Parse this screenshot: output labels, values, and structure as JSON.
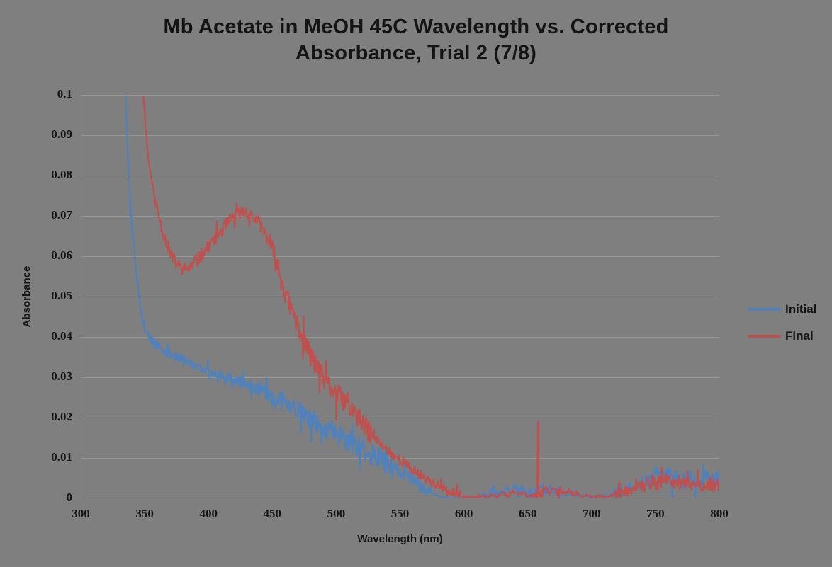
{
  "chart_data": {
    "type": "line",
    "title": "Mb Acetate in MeOH 45C Wavelength vs. Corrected Absorbance, Trial 2 (7/8)",
    "title_lines": [
      "Mb Acetate in MeOH 45C Wavelength vs. Corrected",
      "Absorbance, Trial 2 (7/8)"
    ],
    "xlabel": "Wavelength (nm)",
    "ylabel": "Absorbance",
    "xlim": [
      300,
      800
    ],
    "ylim": [
      0,
      0.1
    ],
    "xticks": [
      300,
      350,
      400,
      450,
      500,
      550,
      600,
      650,
      700,
      750,
      800
    ],
    "yticks": [
      0,
      0.01,
      0.02,
      0.03,
      0.04,
      0.05,
      0.06,
      0.07,
      0.08,
      0.09,
      0.1
    ],
    "ytick_labels": [
      "0",
      "0.01",
      "0.02",
      "0.03",
      "0.04",
      "0.05",
      "0.06",
      "0.07",
      "0.08",
      "0.09",
      "0.1"
    ],
    "grid": "horizontal",
    "background_color": "#7f7f7f",
    "gridline_color": "#969696",
    "axis_line_color": "#9c9c9c",
    "step_nm": 0.5,
    "legend": {
      "position": "right",
      "entries": [
        {
          "label": "Initial",
          "color": "#4F81BD"
        },
        {
          "label": "Final",
          "color": "#C0504D"
        }
      ]
    },
    "series": [
      {
        "name": "Initial",
        "color": "#4F81BD",
        "noise_seed": 3,
        "anchors": [
          [
            335,
            0.1
          ],
          [
            336.5,
            0.088
          ],
          [
            338,
            0.078
          ],
          [
            339.5,
            0.07
          ],
          [
            341,
            0.064
          ],
          [
            343,
            0.058
          ],
          [
            345,
            0.052
          ],
          [
            347,
            0.047
          ],
          [
            349,
            0.0435
          ],
          [
            351,
            0.0415
          ],
          [
            353.5,
            0.04
          ],
          [
            357,
            0.0385
          ],
          [
            361,
            0.0375
          ],
          [
            366,
            0.0365
          ],
          [
            372,
            0.0355
          ],
          [
            378,
            0.0345
          ],
          [
            385,
            0.0335
          ],
          [
            392,
            0.0325
          ],
          [
            400,
            0.0315
          ],
          [
            408,
            0.0305
          ],
          [
            416,
            0.03
          ],
          [
            424,
            0.029
          ],
          [
            432,
            0.028
          ],
          [
            440,
            0.027
          ],
          [
            448,
            0.0258
          ],
          [
            456,
            0.0244
          ],
          [
            464,
            0.023
          ],
          [
            472,
            0.0214
          ],
          [
            480,
            0.0198
          ],
          [
            488,
            0.0184
          ],
          [
            496,
            0.0169
          ],
          [
            504,
            0.0154
          ],
          [
            512,
            0.0139
          ],
          [
            520,
            0.0124
          ],
          [
            528,
            0.0109
          ],
          [
            536,
            0.0094
          ],
          [
            544,
            0.0079
          ],
          [
            550,
            0.0067
          ],
          [
            556,
            0.0054
          ],
          [
            562,
            0.0041
          ],
          [
            568,
            0.0028
          ],
          [
            573,
            0.0018
          ],
          [
            578,
            0.0008
          ],
          [
            583,
            0.0003
          ],
          [
            590,
            0.0001
          ],
          [
            598,
            0
          ],
          [
            612,
            0
          ],
          [
            616,
            0.0012
          ],
          [
            619,
            0.0004
          ],
          [
            622,
            0.0018
          ],
          [
            625,
            0.0008
          ],
          [
            628,
            0.0022
          ],
          [
            631,
            0.001
          ],
          [
            634,
            0.0028
          ],
          [
            637,
            0.0012
          ],
          [
            640,
            0.0032
          ],
          [
            643,
            0.0014
          ],
          [
            646,
            0.0024
          ],
          [
            649,
            0.001
          ],
          [
            652,
            0.002
          ],
          [
            655,
            0.0008
          ],
          [
            658,
            0.0022
          ],
          [
            661,
            0.0032
          ],
          [
            664,
            0.0014
          ],
          [
            667,
            0.0028
          ],
          [
            670,
            0.0014
          ],
          [
            673,
            0.0024
          ],
          [
            676,
            0.001
          ],
          [
            679,
            0.0018
          ],
          [
            682,
            0.0008
          ],
          [
            686,
            0.0014
          ],
          [
            690,
            0.0005
          ],
          [
            695,
            0.0008
          ],
          [
            700,
            0.0003
          ],
          [
            706,
            0.0008
          ],
          [
            712,
            0.0004
          ],
          [
            716,
            0.0012
          ],
          [
            720,
            0.0018
          ],
          [
            725,
            0.0022
          ],
          [
            730,
            0.0028
          ],
          [
            736,
            0.0032
          ],
          [
            742,
            0.0038
          ],
          [
            748,
            0.005
          ],
          [
            752,
            0.0062
          ],
          [
            756,
            0.0048
          ],
          [
            760,
            0.0058
          ],
          [
            764,
            0.0044
          ],
          [
            768,
            0.0054
          ],
          [
            772,
            0.004
          ],
          [
            776,
            0.0048
          ],
          [
            780,
            0.0054
          ],
          [
            784,
            0.0044
          ],
          [
            788,
            0.005
          ],
          [
            792,
            0.0056
          ],
          [
            796,
            0.0044
          ],
          [
            800,
            0.0052
          ]
        ],
        "noise_zones": [
          [
            335,
            344,
            0.0006
          ],
          [
            344,
            440,
            0.0013
          ],
          [
            440,
            470,
            0.002
          ],
          [
            470,
            545,
            0.0028
          ],
          [
            545,
            576,
            0.0015
          ],
          [
            576,
            614,
            0.0001
          ],
          [
            614,
            688,
            0.0008
          ],
          [
            688,
            716,
            0.0003
          ],
          [
            716,
            745,
            0.0012
          ],
          [
            745,
            800,
            0.0022
          ]
        ],
        "spikes": []
      },
      {
        "name": "Final",
        "color": "#C0504D",
        "noise_seed": 11,
        "anchors": [
          [
            349,
            0.1
          ],
          [
            351,
            0.091
          ],
          [
            353,
            0.084
          ],
          [
            355.5,
            0.079
          ],
          [
            358,
            0.074
          ],
          [
            361,
            0.07
          ],
          [
            364,
            0.0665
          ],
          [
            367,
            0.0635
          ],
          [
            370,
            0.061
          ],
          [
            373,
            0.059
          ],
          [
            376,
            0.0578
          ],
          [
            379,
            0.057
          ],
          [
            382,
            0.0568
          ],
          [
            385,
            0.0572
          ],
          [
            388,
            0.058
          ],
          [
            391,
            0.059
          ],
          [
            395,
            0.0605
          ],
          [
            399,
            0.062
          ],
          [
            403,
            0.0638
          ],
          [
            407,
            0.0652
          ],
          [
            411,
            0.0668
          ],
          [
            415,
            0.0682
          ],
          [
            419,
            0.0695
          ],
          [
            423,
            0.0705
          ],
          [
            427,
            0.071
          ],
          [
            431,
            0.0706
          ],
          [
            435,
            0.0698
          ],
          [
            439,
            0.0685
          ],
          [
            443,
            0.0665
          ],
          [
            447,
            0.064
          ],
          [
            451,
            0.0605
          ],
          [
            455,
            0.0565
          ],
          [
            459,
            0.052
          ],
          [
            463,
            0.048
          ],
          [
            467,
            0.0452
          ],
          [
            471,
            0.042
          ],
          [
            475,
            0.039
          ],
          [
            479,
            0.0362
          ],
          [
            483,
            0.0335
          ],
          [
            487,
            0.0312
          ],
          [
            491,
            0.0292
          ],
          [
            496,
            0.0274
          ],
          [
            501,
            0.0258
          ],
          [
            506,
            0.0242
          ],
          [
            511,
            0.0224
          ],
          [
            516,
            0.0204
          ],
          [
            521,
            0.0184
          ],
          [
            526,
            0.0164
          ],
          [
            531,
            0.0147
          ],
          [
            536,
            0.0131
          ],
          [
            541,
            0.0117
          ],
          [
            546,
            0.0104
          ],
          [
            551,
            0.0092
          ],
          [
            556,
            0.008
          ],
          [
            561,
            0.0068
          ],
          [
            566,
            0.0058
          ],
          [
            571,
            0.0048
          ],
          [
            576,
            0.0038
          ],
          [
            581,
            0.0028
          ],
          [
            586,
            0.002
          ],
          [
            591,
            0.0013
          ],
          [
            595,
            0.0008
          ],
          [
            599,
            0.0004
          ],
          [
            604,
            0.0001
          ],
          [
            612,
            0
          ],
          [
            615,
            0.0008
          ],
          [
            618,
            0.0002
          ],
          [
            622,
            0.0012
          ],
          [
            626,
            0.0004
          ],
          [
            630,
            0.0015
          ],
          [
            634,
            0.0006
          ],
          [
            638,
            0.0018
          ],
          [
            642,
            0.0008
          ],
          [
            646,
            0.0015
          ],
          [
            650,
            0.0005
          ],
          [
            654,
            0.001
          ],
          [
            657,
            0.0004
          ],
          [
            661,
            0.0015
          ],
          [
            664,
            0.0025
          ],
          [
            667,
            0.0015
          ],
          [
            670,
            0.0028
          ],
          [
            673,
            0.0015
          ],
          [
            676,
            0.0022
          ],
          [
            679,
            0.001
          ],
          [
            682,
            0.0018
          ],
          [
            685,
            0.0008
          ],
          [
            688,
            0.0012
          ],
          [
            692,
            0.0004
          ],
          [
            697,
            0.0008
          ],
          [
            702,
            0.0003
          ],
          [
            707,
            0.0007
          ],
          [
            712,
            0.0003
          ],
          [
            717,
            0.0008
          ],
          [
            722,
            0.0012
          ],
          [
            727,
            0.0018
          ],
          [
            732,
            0.002
          ],
          [
            737,
            0.0028
          ],
          [
            742,
            0.0035
          ],
          [
            747,
            0.0042
          ],
          [
            752,
            0.0038
          ],
          [
            757,
            0.0046
          ],
          [
            762,
            0.0038
          ],
          [
            767,
            0.0042
          ],
          [
            772,
            0.0032
          ],
          [
            777,
            0.0038
          ],
          [
            782,
            0.003
          ],
          [
            787,
            0.0036
          ],
          [
            792,
            0.003
          ],
          [
            797,
            0.0036
          ],
          [
            800,
            0.0034
          ]
        ],
        "noise_zones": [
          [
            349,
            360,
            0.0009
          ],
          [
            360,
            450,
            0.0016
          ],
          [
            450,
            530,
            0.0026
          ],
          [
            530,
            600,
            0.0012
          ],
          [
            600,
            656,
            0.0004
          ],
          [
            656,
            690,
            0.0008
          ],
          [
            690,
            718,
            0.0003
          ],
          [
            718,
            745,
            0.0012
          ],
          [
            745,
            800,
            0.0018
          ]
        ],
        "spikes": [
          [
            500,
            0.0195
          ],
          [
            658,
            0.019
          ]
        ]
      }
    ]
  }
}
